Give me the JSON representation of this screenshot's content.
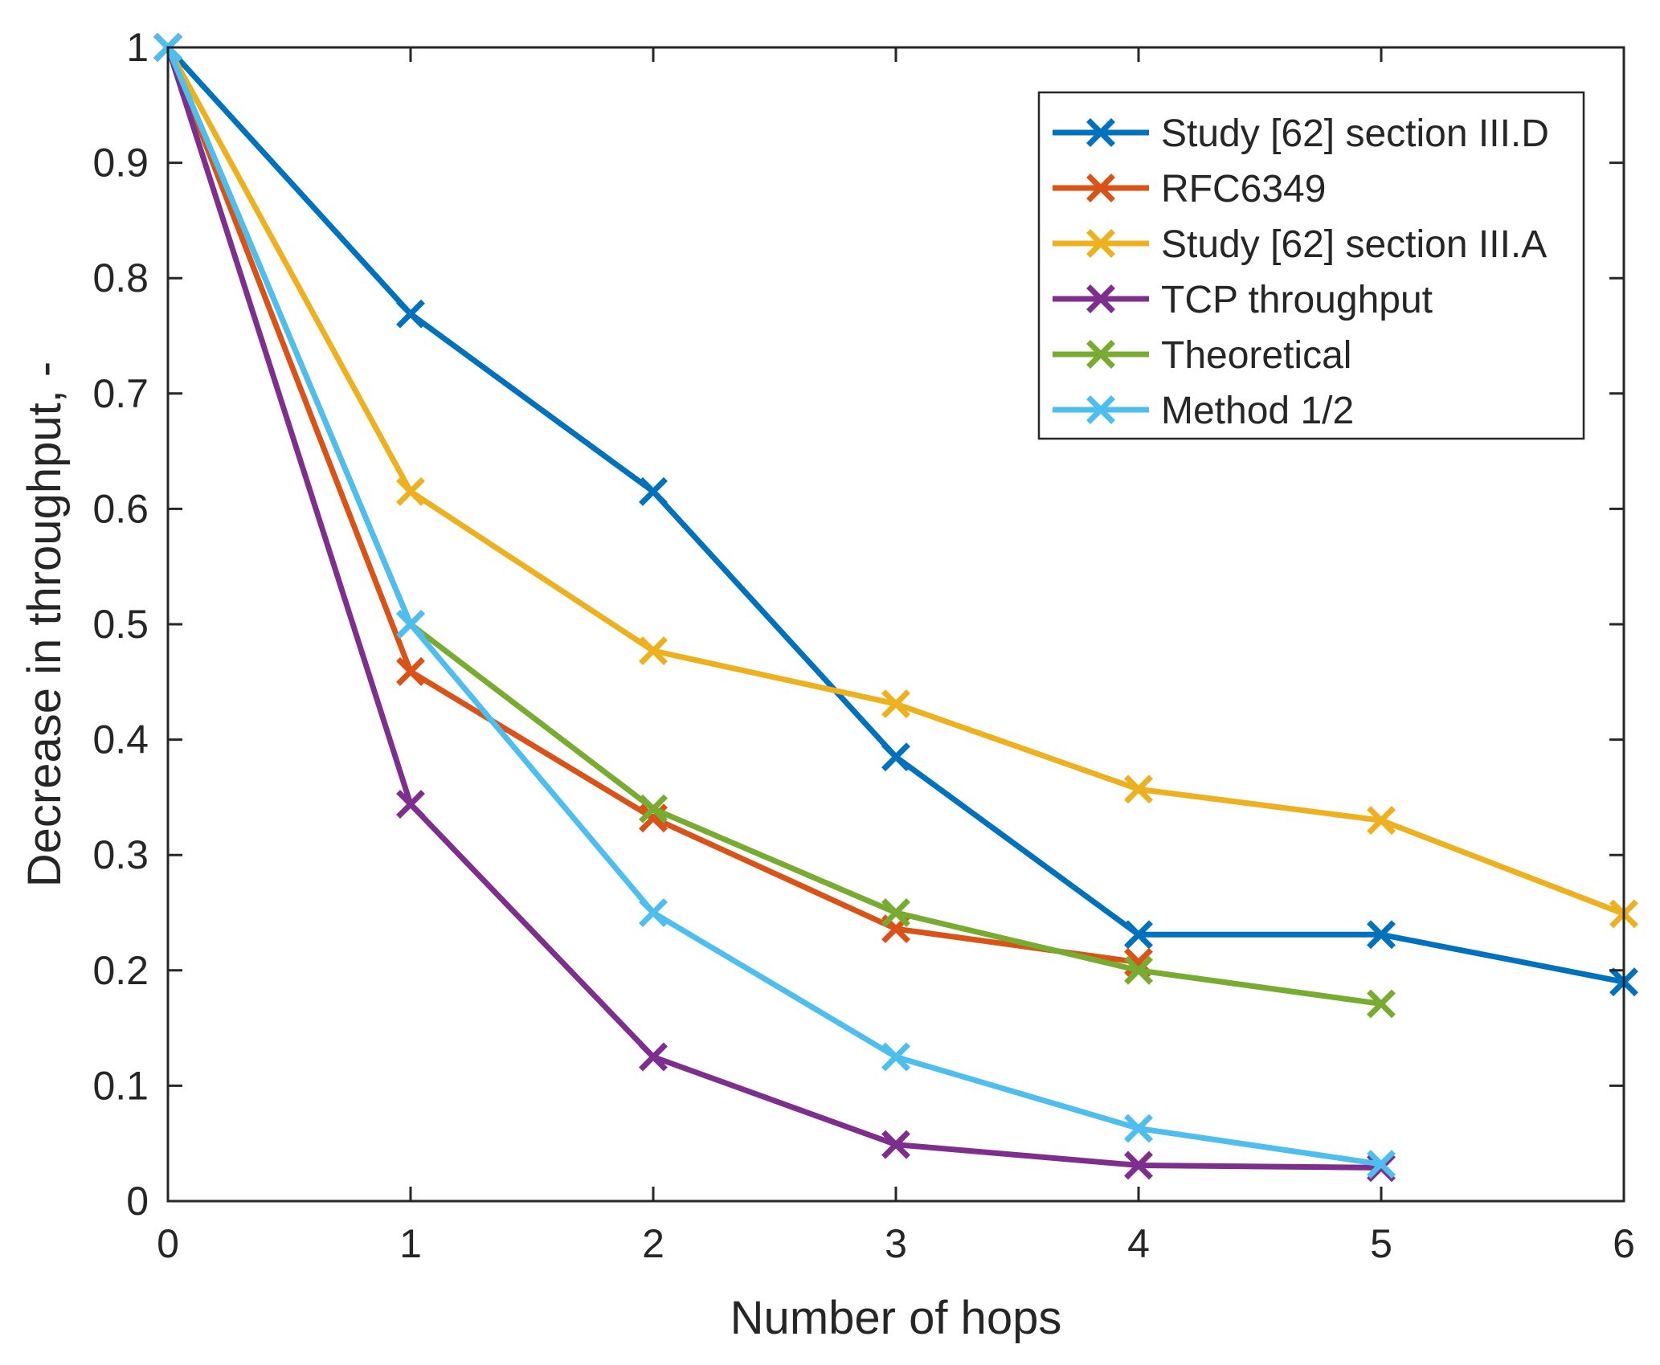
{
  "chart_data": {
    "type": "line",
    "title": "",
    "xlabel": "Number of hops",
    "ylabel": "Decrease in throughput, -",
    "xlim": [
      0,
      6
    ],
    "ylim": [
      0,
      1
    ],
    "xticks": [
      "0",
      "1",
      "2",
      "3",
      "4",
      "5",
      "6"
    ],
    "yticks": [
      "0",
      "0.1",
      "0.2",
      "0.3",
      "0.4",
      "0.5",
      "0.6",
      "0.7",
      "0.8",
      "0.9",
      "1"
    ],
    "grid": false,
    "legend_position": "top-right",
    "marker": "x",
    "series": [
      {
        "name": "Study [62] section III.D",
        "color": "#0072BD",
        "x": [
          0,
          1,
          2,
          3,
          4,
          5,
          6
        ],
        "y": [
          1.0,
          0.769,
          0.615,
          0.385,
          0.231,
          0.231,
          0.19
        ]
      },
      {
        "name": "RFC6349",
        "color": "#D95319",
        "x": [
          0,
          1,
          2,
          3,
          4
        ],
        "y": [
          1.0,
          0.459,
          0.332,
          0.236,
          0.207
        ]
      },
      {
        "name": "Study [62] section III.A",
        "color": "#EDB120",
        "x": [
          0,
          1,
          2,
          3,
          4,
          5,
          6
        ],
        "y": [
          1.0,
          0.615,
          0.477,
          0.431,
          0.357,
          0.33,
          0.249
        ]
      },
      {
        "name": "TCP throughput",
        "color": "#7E2F8E",
        "x": [
          0,
          1,
          2,
          3,
          4,
          5
        ],
        "y": [
          1.0,
          0.344,
          0.125,
          0.049,
          0.031,
          0.029
        ]
      },
      {
        "name": "Theoretical",
        "color": "#77AC30",
        "x": [
          0,
          1,
          2,
          3,
          4,
          5
        ],
        "y": [
          1.0,
          0.5,
          0.34,
          0.25,
          0.2,
          0.171
        ]
      },
      {
        "name": "Method 1/2",
        "color": "#4DBEEE",
        "x": [
          0,
          1,
          2,
          3,
          4,
          5
        ],
        "y": [
          1.0,
          0.5,
          0.25,
          0.125,
          0.063,
          0.032
        ]
      }
    ]
  }
}
